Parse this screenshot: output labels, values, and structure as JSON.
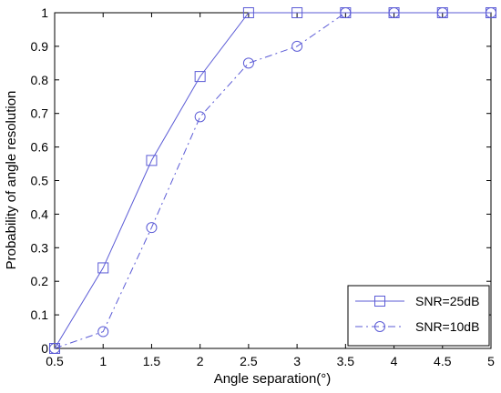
{
  "chart_data": {
    "type": "line",
    "title": "",
    "xlabel": "Angle separation(°)",
    "ylabel": "Probability of angle resolution",
    "xlim": [
      0.5,
      5
    ],
    "ylim": [
      0,
      1
    ],
    "xticks": [
      "0.5",
      "1",
      "1.5",
      "2",
      "2.5",
      "3",
      "3.5",
      "4",
      "4.5",
      "5"
    ],
    "yticks": [
      "0",
      "0.1",
      "0.2",
      "0.3",
      "0.4",
      "0.5",
      "0.6",
      "0.7",
      "0.8",
      "0.9",
      "1"
    ],
    "x": [
      0.5,
      1,
      1.5,
      2,
      2.5,
      3,
      3.5,
      4,
      4.5,
      5
    ],
    "grid": false,
    "legend_position": "bottom-right",
    "series": [
      {
        "name": "SNR=25dB",
        "values": [
          0,
          0.24,
          0.56,
          0.81,
          1,
          1,
          1,
          1,
          1,
          1
        ],
        "marker": "square",
        "line_style": "solid",
        "color": "#5b5bd6"
      },
      {
        "name": "SNR=10dB",
        "values": [
          0,
          0.05,
          0.36,
          0.69,
          0.85,
          0.9,
          1,
          1,
          1,
          1
        ],
        "marker": "circle",
        "line_style": "dash-dot",
        "color": "#5b5bd6"
      }
    ]
  }
}
